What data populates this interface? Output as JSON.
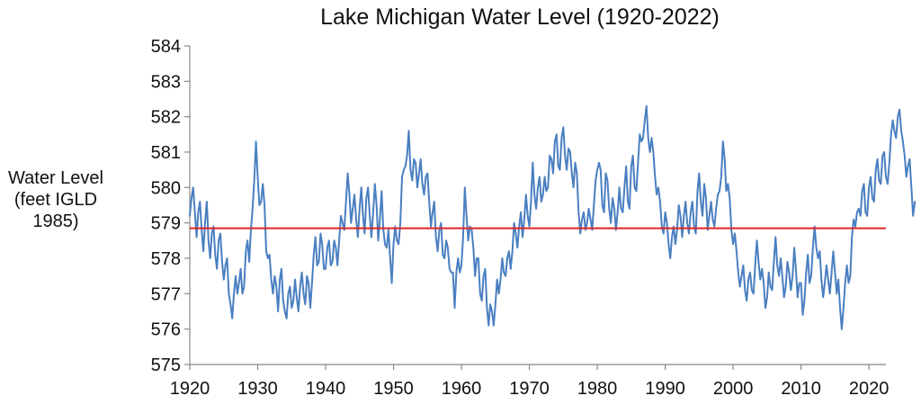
{
  "chart_data": {
    "type": "line",
    "title": "Lake Michigan Water Level (1920-2022)",
    "ylabel_lines": [
      "Water Level",
      "(feet IGLD",
      "1985)"
    ],
    "xlabel": "",
    "xlim": [
      1920,
      2022.5
    ],
    "ylim": [
      575,
      584
    ],
    "x_ticks": [
      1920,
      1930,
      1940,
      1950,
      1960,
      1970,
      1980,
      1990,
      2000,
      2010,
      2020
    ],
    "y_ticks": [
      575,
      576,
      577,
      578,
      579,
      580,
      581,
      582,
      583,
      584
    ],
    "grid": false,
    "legend": "none",
    "colors": {
      "series": "#4a7fc1",
      "average": "#e02424",
      "axis": "#888888"
    },
    "average_line": {
      "y": 578.85
    },
    "series": [
      {
        "x_start": 1920.0,
        "x_step": 0.25,
        "values": [
          579.2,
          579.7,
          580.0,
          579.3,
          578.6,
          579.3,
          579.6,
          578.8,
          578.2,
          579.0,
          579.6,
          578.5,
          578.0,
          578.7,
          578.9,
          578.1,
          577.7,
          578.5,
          578.7,
          577.9,
          577.4,
          577.8,
          578.0,
          577.0,
          576.7,
          576.3,
          577.0,
          577.5,
          577.0,
          577.3,
          577.7,
          577.0,
          577.2,
          578.2,
          578.5,
          577.9,
          578.8,
          579.4,
          580.2,
          581.3,
          580.3,
          579.5,
          579.6,
          580.1,
          579.5,
          578.2,
          578.0,
          578.1,
          577.4,
          577.0,
          577.5,
          577.2,
          576.5,
          577.4,
          577.7,
          576.8,
          576.5,
          576.3,
          577.0,
          577.2,
          576.6,
          576.8,
          577.4,
          576.9,
          576.5,
          577.2,
          577.6,
          577.0,
          576.7,
          577.5,
          577.3,
          576.6,
          577.3,
          578.1,
          578.6,
          577.8,
          577.9,
          578.7,
          578.4,
          577.7,
          577.7,
          578.3,
          578.5,
          577.8,
          577.9,
          578.5,
          578.3,
          577.8,
          578.5,
          579.2,
          579.0,
          578.8,
          579.6,
          580.4,
          579.8,
          579.0,
          579.4,
          579.8,
          579.1,
          578.6,
          579.4,
          580.0,
          579.2,
          578.7,
          579.7,
          580.0,
          579.2,
          578.6,
          579.3,
          580.1,
          579.5,
          578.5,
          579.1,
          579.9,
          578.8,
          578.4,
          578.3,
          578.8,
          578.0,
          577.3,
          578.4,
          578.9,
          578.5,
          578.4,
          579.0,
          580.3,
          580.5,
          580.6,
          580.9,
          581.6,
          580.5,
          580.2,
          580.8,
          580.7,
          580.0,
          580.4,
          580.8,
          580.1,
          579.8,
          580.3,
          580.4,
          579.6,
          578.9,
          579.3,
          579.6,
          578.6,
          578.2,
          578.8,
          579.0,
          578.1,
          578.0,
          578.5,
          578.3,
          577.7,
          577.6,
          577.6,
          576.6,
          577.6,
          578.0,
          577.6,
          577.8,
          578.6,
          580.0,
          579.2,
          578.5,
          578.9,
          578.8,
          578.3,
          577.5,
          578.0,
          578.0,
          577.0,
          576.8,
          577.5,
          577.7,
          576.6,
          576.1,
          576.7,
          576.5,
          576.1,
          576.7,
          577.4,
          577.0,
          577.4,
          578.0,
          577.6,
          577.5,
          578.0,
          578.2,
          577.7,
          578.2,
          579.0,
          578.7,
          578.3,
          578.9,
          579.3,
          578.6,
          579.1,
          579.8,
          579.2,
          578.9,
          579.6,
          580.7,
          579.8,
          579.4,
          580.0,
          580.3,
          579.6,
          579.8,
          580.3,
          579.9,
          580.0,
          580.9,
          580.8,
          580.4,
          581.3,
          581.5,
          580.6,
          580.5,
          581.4,
          581.7,
          580.9,
          580.5,
          581.1,
          581.0,
          580.4,
          580.0,
          580.7,
          580.4,
          579.3,
          578.7,
          579.1,
          579.3,
          578.8,
          579.0,
          579.4,
          579.1,
          578.8,
          579.5,
          580.2,
          580.5,
          580.7,
          580.5,
          579.5,
          579.3,
          580.4,
          580.2,
          579.4,
          579.0,
          579.7,
          579.4,
          578.8,
          579.3,
          580.0,
          579.4,
          579.3,
          580.0,
          580.6,
          579.6,
          579.4,
          580.6,
          580.9,
          580.0,
          579.9,
          580.7,
          581.5,
          581.3,
          581.4,
          581.9,
          582.3,
          581.4,
          581.0,
          581.4,
          581.0,
          580.3,
          579.8,
          580.0,
          579.6,
          578.9,
          578.7,
          579.3,
          579.0,
          578.4,
          578.0,
          578.6,
          578.9,
          578.4,
          578.8,
          579.5,
          579.2,
          578.6,
          579.2,
          579.6,
          579.0,
          578.7,
          579.3,
          579.6,
          578.9,
          578.7,
          579.9,
          580.4,
          579.6,
          579.2,
          580.1,
          579.7,
          578.8,
          579.2,
          579.6,
          579.1,
          578.9,
          579.4,
          579.8,
          579.9,
          580.3,
          581.3,
          580.8,
          579.9,
          580.1,
          579.7,
          578.8,
          578.4,
          578.7,
          578.2,
          577.6,
          577.2,
          577.5,
          577.8,
          577.1,
          576.8,
          577.4,
          577.6,
          577.1,
          577.0,
          577.8,
          578.5,
          577.9,
          577.4,
          577.7,
          577.3,
          576.6,
          576.9,
          577.6,
          577.2,
          577.1,
          577.9,
          578.6,
          577.8,
          577.5,
          578.0,
          577.5,
          576.9,
          577.2,
          577.9,
          577.6,
          577.1,
          577.5,
          578.3,
          577.7,
          576.9,
          577.3,
          577.3,
          576.4,
          576.8,
          577.6,
          578.1,
          577.3,
          577.5,
          578.3,
          578.9,
          578.3,
          578.0,
          578.2,
          577.4,
          576.9,
          577.3,
          577.8,
          577.4,
          577.0,
          577.6,
          578.2,
          577.6,
          577.0,
          577.4,
          576.6,
          576.0,
          576.6,
          577.3,
          577.8,
          577.3,
          577.5,
          578.6,
          579.1,
          578.9,
          579.3,
          579.4,
          579.2,
          579.9,
          580.1,
          579.3,
          579.2,
          580.0,
          580.3,
          579.7,
          579.6,
          580.5,
          580.8,
          580.2,
          580.1,
          580.9,
          581.0,
          580.3,
          580.1,
          580.7,
          581.5,
          581.9,
          581.6,
          581.4,
          582.0,
          582.2,
          581.6,
          581.3,
          580.9,
          580.3,
          580.6,
          580.8,
          580.0,
          579.2,
          579.6
        ]
      }
    ]
  }
}
